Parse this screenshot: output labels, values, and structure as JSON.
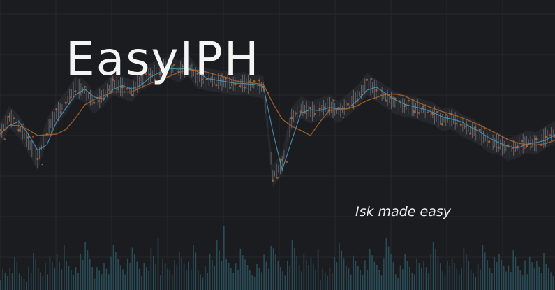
{
  "brand": {
    "title": "EasyIPH",
    "tagline": "Isk made easy"
  },
  "background_chart": {
    "type": "candlestick",
    "series": [
      {
        "name": "price",
        "values": [
          150,
          172,
          160,
          140,
          118,
          155,
          176,
          190,
          210,
          205,
          190,
          200,
          214,
          210,
          205,
          220,
          226,
          232,
          236,
          230,
          238,
          222,
          220,
          218,
          216,
          214,
          215,
          212,
          210,
          96,
          112,
          170,
          184,
          178,
          182,
          186,
          178,
          188,
          198,
          214,
          206,
          198,
          190,
          186,
          184,
          180,
          176,
          168,
          170,
          162,
          156,
          150,
          140,
          138,
          130,
          134,
          140,
          138,
          146,
          152
        ]
      },
      {
        "name": "volume",
        "values": [
          40,
          55,
          30,
          70,
          45,
          60,
          85,
          50,
          65,
          95,
          40,
          60,
          75,
          55,
          80,
          45,
          90,
          60,
          50,
          70,
          85,
          40,
          65,
          120,
          55,
          75,
          60,
          45,
          80,
          70,
          50,
          95,
          60,
          70,
          40,
          55,
          85,
          65,
          50,
          75,
          60,
          90,
          45,
          70,
          55,
          65,
          80,
          50,
          60,
          70,
          45,
          85,
          55,
          65,
          75,
          50,
          60,
          70,
          45,
          55
        ]
      }
    ],
    "colors": {
      "background": "#1b1c1f",
      "grid": "#26272b",
      "candle": "#c6c8cc",
      "moving_average_fast": "#4a9bbf",
      "moving_average_slow": "#a8652e",
      "marker": "#c26a2a",
      "volume": "#2f5c6a"
    }
  }
}
